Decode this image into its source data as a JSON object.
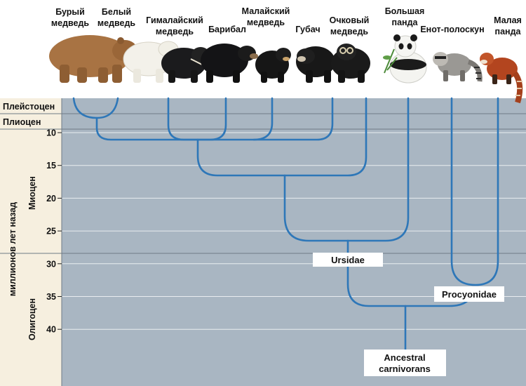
{
  "species": [
    {
      "id": "brown",
      "line1": "Бурый",
      "line2": "медведь"
    },
    {
      "id": "polar",
      "line1": "Белый",
      "line2": "медведь"
    },
    {
      "id": "himalayan",
      "line1": "Гималайский",
      "line2": "медведь"
    },
    {
      "id": "baribal",
      "line1": "Барибал",
      "line2": ""
    },
    {
      "id": "malayan",
      "line1": "Малайский",
      "line2": "медведь"
    },
    {
      "id": "sloth",
      "line1": "Губач",
      "line2": ""
    },
    {
      "id": "spectacled",
      "line1": "Очковый",
      "line2": "медведь"
    },
    {
      "id": "giantpanda",
      "line1": "Большая",
      "line2": "панда"
    },
    {
      "id": "raccoon",
      "line1": "Енот-полоскун",
      "line2": ""
    },
    {
      "id": "redpanda",
      "line1": "Малая",
      "line2": "панда"
    }
  ],
  "axis": {
    "label": "миллионов лет назад",
    "ticks": [
      "10",
      "15",
      "20",
      "25",
      "30",
      "35",
      "40"
    ],
    "tick_values": [
      10,
      15,
      20,
      25,
      30,
      35,
      40
    ],
    "range_mya": [
      0,
      43
    ]
  },
  "epochs": {
    "pleistocene": "Плейстоцен",
    "pliocene": "Плиоцен",
    "miocene": "Миоцен",
    "oligocene": "Олигоцен"
  },
  "nodes": {
    "ursidae": "Ursidae",
    "procyonidae": "Procyonidae",
    "ancestral_line1": "Ancestral",
    "ancestral_line2": "carnivorans"
  },
  "colors": {
    "branch": "#2e77b8",
    "plot_background": "#a9b6c2",
    "axis_background": "#f6efdf",
    "grid": "#e9edf0"
  }
}
